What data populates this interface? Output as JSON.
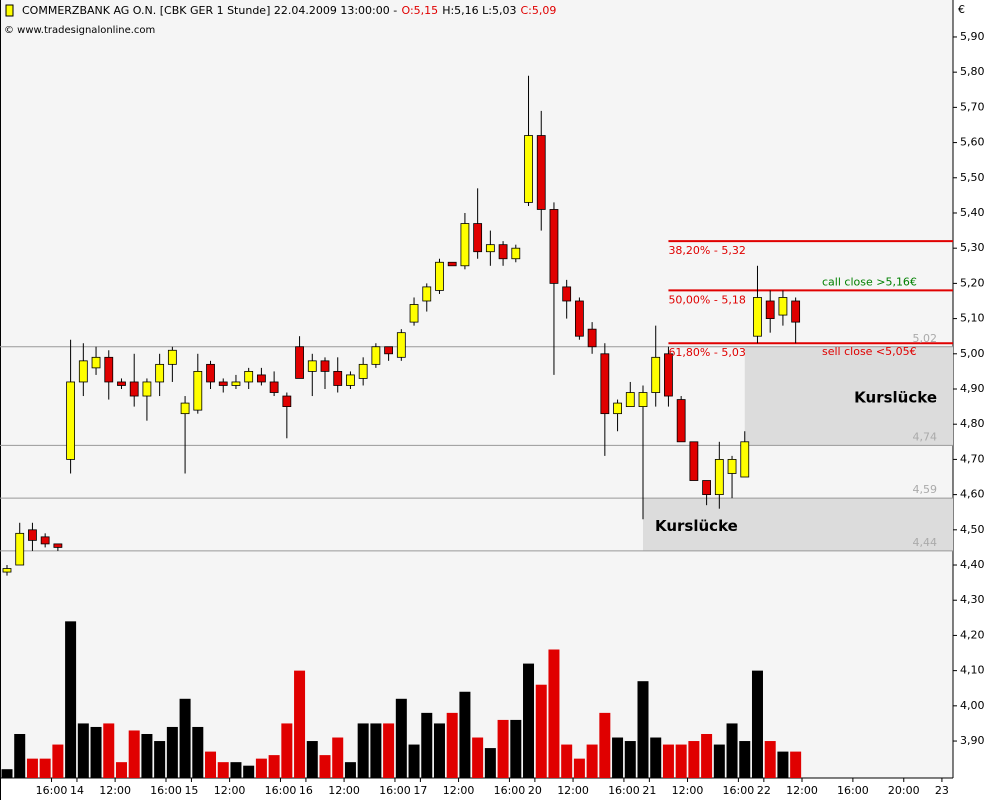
{
  "chart_data": {
    "type": "candlestick",
    "title_parts": [
      {
        "text": "COMMERZBANK AG O.N. [CBK GER  1 Stunde] 22.04.2009 13:00:00 -",
        "color": "#000000"
      },
      {
        "text": "O:5,15",
        "color": "#e00000"
      },
      {
        "text": "H:5,16 L:5,03",
        "color": "#000000"
      },
      {
        "text": "C:5,09",
        "color": "#e00000"
      }
    ],
    "subtitle": "© www.tradesignalonline.com",
    "currency": "€",
    "categories": [
      null,
      null,
      null,
      "16:00",
      null,
      "14",
      null,
      null,
      "12:00",
      null,
      null,
      null,
      "16:00",
      null,
      "15",
      null,
      null,
      "12:00",
      null,
      null,
      null,
      "16:00",
      null,
      "16",
      null,
      null,
      "12:00",
      null,
      null,
      null,
      "16:00",
      null,
      "17",
      null,
      null,
      "12:00",
      null,
      null,
      null,
      "16:00",
      null,
      "20",
      null,
      null,
      "12:00",
      null,
      null,
      null,
      "16:00",
      null,
      "21",
      null,
      null,
      "12:00",
      null,
      null,
      null,
      "16:00",
      null,
      "22",
      null,
      null,
      "12:00",
      null,
      null,
      null,
      "16:00",
      null,
      null,
      null,
      "20:00",
      null,
      null,
      "23",
      null
    ],
    "open": [
      4.38,
      4.4,
      4.5,
      4.48,
      4.46,
      4.7,
      4.92,
      4.96,
      4.99,
      4.92,
      4.92,
      4.88,
      4.92,
      4.97,
      4.83,
      4.84,
      4.97,
      4.92,
      4.91,
      4.92,
      4.94,
      4.92,
      4.88,
      5.02,
      4.95,
      4.98,
      4.95,
      4.91,
      4.93,
      4.97,
      5.02,
      4.99,
      5.09,
      5.15,
      5.18,
      5.26,
      5.25,
      5.37,
      5.29,
      5.31,
      5.27,
      5.43,
      5.62,
      5.41,
      5.19,
      5.15,
      5.07,
      5.0,
      4.83,
      4.85,
      4.85,
      4.89,
      5.0,
      4.87,
      4.75,
      4.64,
      4.6,
      4.66,
      4.65,
      5.05,
      5.15,
      5.11,
      5.15,
      null,
      null,
      null,
      null,
      null,
      null,
      null,
      null,
      null,
      null,
      null,
      null
    ],
    "high": [
      4.4,
      4.52,
      4.52,
      4.49,
      4.46,
      5.04,
      5.03,
      5.02,
      5.01,
      4.93,
      5.0,
      4.93,
      5.0,
      5.02,
      4.88,
      5.0,
      4.98,
      4.93,
      4.94,
      4.96,
      4.96,
      4.95,
      4.89,
      5.05,
      5.0,
      4.99,
      4.99,
      4.95,
      4.99,
      5.03,
      5.02,
      5.07,
      5.16,
      5.2,
      5.27,
      5.26,
      5.4,
      5.47,
      5.35,
      5.32,
      5.31,
      5.79,
      5.69,
      5.43,
      5.21,
      5.16,
      5.09,
      5.03,
      4.87,
      4.92,
      4.91,
      5.08,
      5.02,
      4.88,
      4.75,
      4.64,
      4.75,
      4.71,
      4.78,
      5.25,
      5.18,
      5.18,
      5.16,
      null,
      null,
      null,
      null,
      null,
      null,
      null,
      null,
      null,
      null,
      null,
      null
    ],
    "low": [
      4.37,
      4.4,
      4.44,
      4.45,
      4.44,
      4.66,
      4.88,
      4.94,
      4.87,
      4.9,
      4.85,
      4.81,
      4.88,
      4.92,
      4.66,
      4.83,
      4.9,
      4.89,
      4.9,
      4.9,
      4.91,
      4.88,
      4.76,
      4.93,
      4.88,
      4.9,
      4.89,
      4.9,
      4.91,
      4.96,
      4.98,
      4.98,
      5.08,
      5.12,
      5.17,
      5.25,
      5.24,
      5.27,
      5.25,
      5.25,
      5.26,
      5.42,
      5.35,
      4.94,
      5.1,
      5.04,
      5.0,
      4.71,
      4.78,
      4.85,
      4.53,
      4.85,
      4.85,
      4.75,
      4.64,
      4.57,
      4.56,
      4.59,
      4.65,
      5.03,
      5.06,
      5.08,
      5.03,
      null,
      null,
      null,
      null,
      null,
      null,
      null,
      null,
      null,
      null,
      null,
      null
    ],
    "close": [
      4.39,
      4.49,
      4.47,
      4.46,
      4.45,
      4.92,
      4.98,
      4.99,
      4.92,
      4.91,
      4.88,
      4.92,
      4.97,
      5.01,
      4.86,
      4.95,
      4.92,
      4.91,
      4.92,
      4.95,
      4.92,
      4.89,
      4.85,
      4.93,
      4.98,
      4.95,
      4.91,
      4.94,
      4.97,
      5.02,
      5.0,
      5.06,
      5.14,
      5.19,
      5.26,
      5.25,
      5.37,
      5.29,
      5.31,
      5.27,
      5.3,
      5.62,
      5.41,
      5.2,
      5.15,
      5.05,
      5.02,
      4.83,
      4.86,
      4.89,
      4.89,
      4.99,
      4.88,
      4.75,
      4.64,
      4.6,
      4.7,
      4.7,
      4.75,
      5.16,
      5.1,
      5.16,
      5.09,
      null,
      null,
      null,
      null,
      null,
      null,
      null,
      null,
      null,
      null,
      null,
      null
    ],
    "volume": [
      3.82,
      3.92,
      3.85,
      3.85,
      3.89,
      4.24,
      3.95,
      3.94,
      3.95,
      3.84,
      3.93,
      3.92,
      3.9,
      3.94,
      4.02,
      3.94,
      3.87,
      3.84,
      3.84,
      3.83,
      3.85,
      3.86,
      3.95,
      4.1,
      3.9,
      3.86,
      3.91,
      3.84,
      3.95,
      3.95,
      3.95,
      4.02,
      3.89,
      3.98,
      3.95,
      3.98,
      4.04,
      3.91,
      3.88,
      3.96,
      3.96,
      4.12,
      4.06,
      4.16,
      3.89,
      3.85,
      3.89,
      3.98,
      3.91,
      3.9,
      4.07,
      3.91,
      3.89,
      3.89,
      3.9,
      3.92,
      3.89,
      3.95,
      3.9,
      4.1,
      3.9,
      3.87,
      3.87,
      null,
      null,
      null,
      null,
      null,
      null,
      null,
      null,
      null,
      null,
      null,
      null
    ],
    "up_color": "#ffff00",
    "down_color": "#e00000",
    "volume_up_color": "#000000",
    "ylim": [
      3.795,
      6.005
    ],
    "yticks": [
      {
        "value": 3.9,
        "label": "3,90"
      },
      {
        "value": 4.0,
        "label": "4,00"
      },
      {
        "value": 4.1,
        "label": "4,10"
      },
      {
        "value": 4.2,
        "label": "4,20"
      },
      {
        "value": 4.3,
        "label": "4,30"
      },
      {
        "value": 4.4,
        "label": "4,40"
      },
      {
        "value": 4.5,
        "label": "4,50"
      },
      {
        "value": 4.6,
        "label": "4,60"
      },
      {
        "value": 4.7,
        "label": "4,70"
      },
      {
        "value": 4.8,
        "label": "4,80"
      },
      {
        "value": 4.9,
        "label": "4,90"
      },
      {
        "value": 5.0,
        "label": "5,00"
      },
      {
        "value": 5.1,
        "label": "5,10"
      },
      {
        "value": 5.2,
        "label": "5,20"
      },
      {
        "value": 5.3,
        "label": "5,30"
      },
      {
        "value": 5.4,
        "label": "5,40"
      },
      {
        "value": 5.5,
        "label": "5,50"
      },
      {
        "value": 5.6,
        "label": "5,60"
      },
      {
        "value": 5.7,
        "label": "5,70"
      },
      {
        "value": 5.8,
        "label": "5,80"
      },
      {
        "value": 5.9,
        "label": "5,90"
      }
    ],
    "levels": [
      {
        "value": 5.02,
        "label": "5,02"
      },
      {
        "value": 4.74,
        "label": "4,74"
      },
      {
        "value": 4.59,
        "label": "4,59"
      },
      {
        "value": 4.44,
        "label": "4,44"
      }
    ],
    "gaps": [
      {
        "low": 4.74,
        "high": 5.02,
        "label": "Kurslücke"
      },
      {
        "low": 4.44,
        "high": 4.59,
        "label": "Kurslücke"
      }
    ],
    "fib_lines": [
      {
        "value": 5.32,
        "label": "38,20% - 5,32",
        "color": "#e00000"
      },
      {
        "value": 5.18,
        "label": "50,00% - 5,18",
        "color": "#e00000",
        "signal": "call close >5,16€",
        "signal_color": "#008000"
      },
      {
        "value": 5.03,
        "label": "61,80% - 5,03",
        "color": "#e00000",
        "signal": "sell close <5,05€",
        "signal_color": "#e00000"
      }
    ]
  }
}
